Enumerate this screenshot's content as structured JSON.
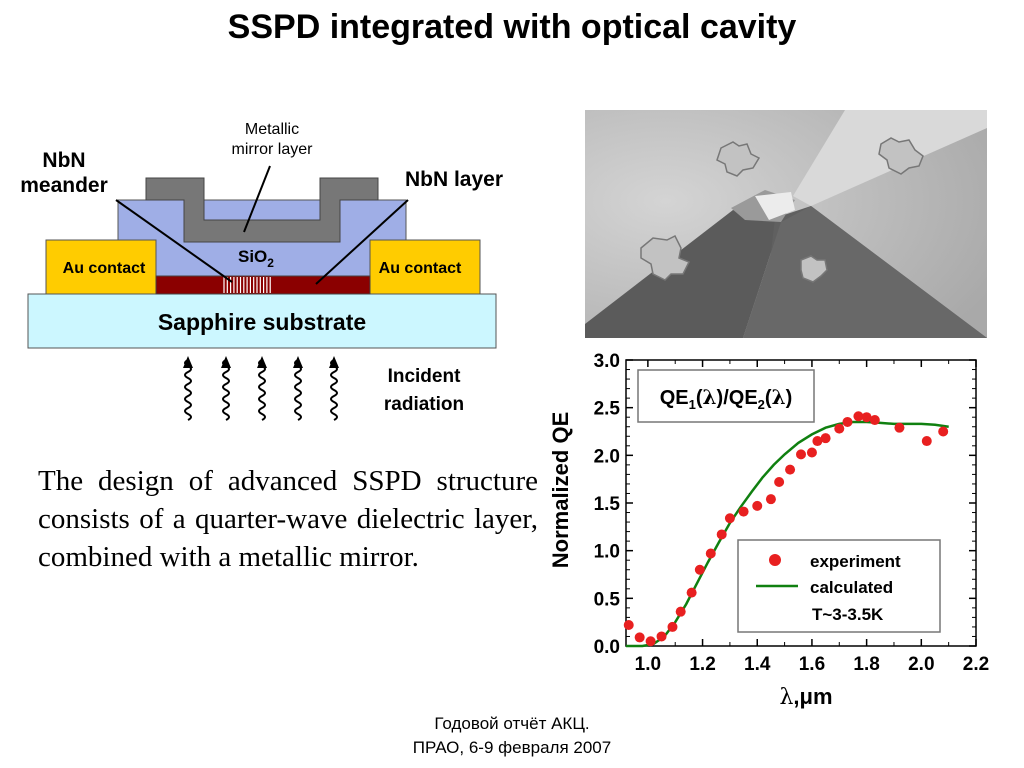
{
  "slide": {
    "title": "SSPD integrated with optical cavity",
    "body_text": "The design of advanced SSPD structure consists of a quarter-wave dielectric layer, combined with a metallic mirror.",
    "footer_line1": "Годовой отчёт АКЦ.",
    "footer_line2": "ПРАО, 6-9 февраля 2007"
  },
  "diagram": {
    "label_metallic_1": "Metallic",
    "label_metallic_2": "mirror layer",
    "label_nbn_meander_1": "NbN",
    "label_nbn_meander_2": "meander",
    "label_nbn_layer": "NbN layer",
    "label_sio2": "SiO",
    "label_sio2_sub": "2",
    "label_au_left": "Au contact",
    "label_au_right": "Au contact",
    "label_substrate": "Sapphire substrate",
    "label_incident_1": "Incident",
    "label_incident_2": "radiation",
    "colors": {
      "mirror": "#777777",
      "sio2": "#9faee6",
      "au": "#ffcc00",
      "nbn": "#8b0000",
      "substrate": "#ccf7ff"
    }
  },
  "chart_data": {
    "type": "scatter",
    "legend_title": "QE",
    "legend_title_parts": [
      "QE",
      "1",
      "(",
      "λ",
      ")/QE",
      "2",
      "(",
      "λ",
      ")"
    ],
    "ylabel": "Normalized QE",
    "xlabel_sym": "λ",
    "xlabel_rest": ",μm",
    "xlim": [
      0.92,
      2.2
    ],
    "ylim": [
      0.0,
      3.0
    ],
    "xticks": [
      "1.0",
      "1.2",
      "1.4",
      "1.6",
      "1.8",
      "2.0",
      "2.2"
    ],
    "xtick_values": [
      1.0,
      1.2,
      1.4,
      1.6,
      1.8,
      2.0,
      2.2
    ],
    "yticks": [
      "0.0",
      "0.5",
      "1.0",
      "1.5",
      "2.0",
      "2.5",
      "3.0"
    ],
    "ytick_values": [
      0.0,
      0.5,
      1.0,
      1.5,
      2.0,
      2.5,
      3.0
    ],
    "legend_experiment": "experiment",
    "legend_calculated": "calculated",
    "legend_temp": "T~3-3.5K",
    "series": [
      {
        "name": "experiment",
        "color": "#e82020",
        "x": [
          0.93,
          0.97,
          1.01,
          1.05,
          1.09,
          1.12,
          1.16,
          1.19,
          1.23,
          1.27,
          1.3,
          1.35,
          1.4,
          1.45,
          1.48,
          1.52,
          1.56,
          1.6,
          1.62,
          1.65,
          1.7,
          1.73,
          1.77,
          1.8,
          1.83,
          1.92,
          2.02,
          2.08
        ],
        "y": [
          0.22,
          0.09,
          0.05,
          0.1,
          0.2,
          0.36,
          0.56,
          0.8,
          0.97,
          1.17,
          1.34,
          1.41,
          1.47,
          1.54,
          1.72,
          1.85,
          2.01,
          2.03,
          2.15,
          2.18,
          2.28,
          2.35,
          2.41,
          2.4,
          2.37,
          2.29,
          2.15,
          2.25
        ]
      },
      {
        "name": "calculated",
        "color": "#108010",
        "x": [
          0.92,
          0.98,
          1.02,
          1.06,
          1.1,
          1.14,
          1.18,
          1.22,
          1.26,
          1.3,
          1.34,
          1.38,
          1.42,
          1.46,
          1.5,
          1.55,
          1.6,
          1.65,
          1.7,
          1.75,
          1.8,
          1.85,
          1.9,
          1.95,
          2.0,
          2.05,
          2.1
        ],
        "y": [
          0.0,
          0.0,
          0.02,
          0.1,
          0.25,
          0.44,
          0.66,
          0.88,
          1.09,
          1.29,
          1.46,
          1.62,
          1.77,
          1.9,
          2.01,
          2.13,
          2.22,
          2.29,
          2.33,
          2.35,
          2.35,
          2.34,
          2.33,
          2.33,
          2.33,
          2.32,
          2.3
        ]
      }
    ]
  }
}
